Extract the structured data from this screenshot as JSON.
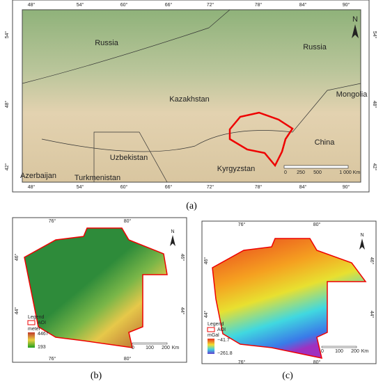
{
  "panel_a": {
    "lon_labels": [
      "48°",
      "54°",
      "60°",
      "66°",
      "72°",
      "78°",
      "84°",
      "90°"
    ],
    "lat_labels": [
      "54°",
      "48°",
      "42°"
    ],
    "countries": [
      "Russia",
      "Russia",
      "Kazakhstan",
      "Mongolia",
      "China",
      "Uzbekistan",
      "Kyrgyzstan",
      "Turkmenistan",
      "Azerbaijan"
    ],
    "north": "N",
    "scale": [
      "0",
      "250",
      "500",
      "1 000",
      "Km"
    ],
    "caption": "(a)"
  },
  "panel_b": {
    "lon_labels": [
      "76°",
      "80°"
    ],
    "lat_labels": [
      "46°",
      "44°"
    ],
    "north": "N",
    "legend": {
      "title": "Legend",
      "aoi": "AOI",
      "unit": "meter",
      "max": "4467",
      "min": "193"
    },
    "scale": [
      "0",
      "100",
      "200",
      "Km"
    ],
    "caption": "(b)"
  },
  "panel_c": {
    "lon_labels": [
      "76°",
      "80°"
    ],
    "lat_labels": [
      "46°",
      "44°"
    ],
    "north": "N",
    "legend": {
      "title": "Legend",
      "aoi": "AOI",
      "unit": "mGal",
      "max": "−41.7",
      "min": "−261.8"
    },
    "scale": [
      "0",
      "100",
      "200",
      "Km"
    ],
    "caption": "(c)"
  }
}
